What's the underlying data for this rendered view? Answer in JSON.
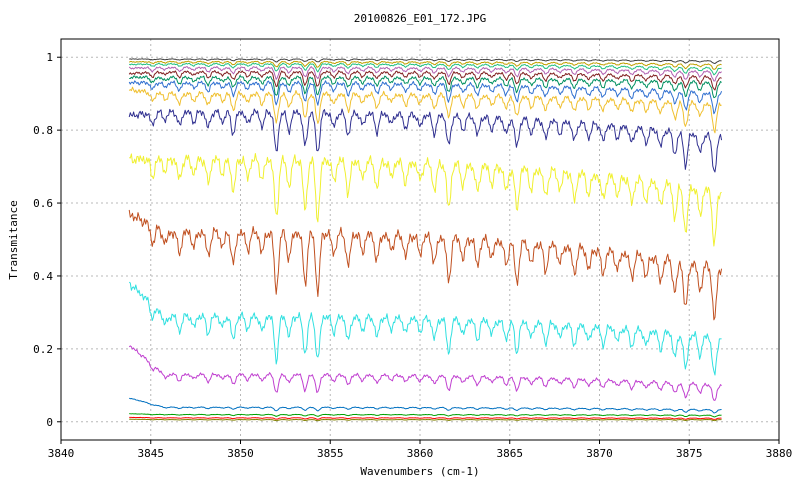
{
  "chart_data": {
    "type": "line",
    "title": "20100826_E01_172.JPG",
    "xlabel": "Wavenumbers (cm-1)",
    "ylabel": "Transmitance",
    "xlim": [
      3840,
      3880
    ],
    "ylim": [
      -0.05,
      1.05
    ],
    "xticks": [
      3840,
      3845,
      3850,
      3855,
      3860,
      3865,
      3870,
      3875,
      3880
    ],
    "yticks": [
      0,
      0.2,
      0.4,
      0.6,
      0.8,
      1
    ],
    "grid": true,
    "legend": "none",
    "x_range": [
      3843.8,
      3876.8
    ],
    "absorption_lines": [
      {
        "x": 3845.1,
        "strength": 0.3
      },
      {
        "x": 3845.8,
        "strength": 0.2
      },
      {
        "x": 3846.6,
        "strength": 0.35
      },
      {
        "x": 3847.4,
        "strength": 0.25
      },
      {
        "x": 3848.2,
        "strength": 0.4
      },
      {
        "x": 3849.0,
        "strength": 0.25
      },
      {
        "x": 3849.6,
        "strength": 0.55
      },
      {
        "x": 3850.4,
        "strength": 0.3
      },
      {
        "x": 3851.2,
        "strength": 0.35
      },
      {
        "x": 3852.0,
        "strength": 1.0
      },
      {
        "x": 3852.7,
        "strength": 0.45
      },
      {
        "x": 3853.6,
        "strength": 0.85
      },
      {
        "x": 3854.3,
        "strength": 1.0
      },
      {
        "x": 3855.2,
        "strength": 0.35
      },
      {
        "x": 3856.0,
        "strength": 0.55
      },
      {
        "x": 3856.8,
        "strength": 0.3
      },
      {
        "x": 3857.6,
        "strength": 0.45
      },
      {
        "x": 3858.4,
        "strength": 0.25
      },
      {
        "x": 3859.2,
        "strength": 0.35
      },
      {
        "x": 3860.0,
        "strength": 0.3
      },
      {
        "x": 3860.8,
        "strength": 0.45
      },
      {
        "x": 3861.6,
        "strength": 0.75
      },
      {
        "x": 3862.4,
        "strength": 0.35
      },
      {
        "x": 3863.2,
        "strength": 0.45
      },
      {
        "x": 3864.0,
        "strength": 0.3
      },
      {
        "x": 3864.8,
        "strength": 0.4
      },
      {
        "x": 3865.4,
        "strength": 0.7
      },
      {
        "x": 3866.2,
        "strength": 0.35
      },
      {
        "x": 3867.0,
        "strength": 0.45
      },
      {
        "x": 3867.8,
        "strength": 0.3
      },
      {
        "x": 3868.6,
        "strength": 0.45
      },
      {
        "x": 3869.4,
        "strength": 0.35
      },
      {
        "x": 3870.2,
        "strength": 0.4
      },
      {
        "x": 3871.0,
        "strength": 0.3
      },
      {
        "x": 3871.8,
        "strength": 0.4
      },
      {
        "x": 3872.6,
        "strength": 0.35
      },
      {
        "x": 3873.4,
        "strength": 0.4
      },
      {
        "x": 3874.2,
        "strength": 0.55
      },
      {
        "x": 3874.8,
        "strength": 0.8
      },
      {
        "x": 3875.6,
        "strength": 0.45
      },
      {
        "x": 3876.4,
        "strength": 0.9
      }
    ],
    "line_width": 0.16,
    "series": [
      {
        "color": "#ff0000",
        "start": 0.012,
        "end": 0.01,
        "base": 0.011,
        "depth": 0.004
      },
      {
        "color": "#808000",
        "start": 0.007,
        "end": 0.006,
        "base": 0.006,
        "depth": 0.003
      },
      {
        "color": "#00a000",
        "start": 0.022,
        "end": 0.018,
        "base": 0.02,
        "depth": 0.005
      },
      {
        "color": "#0070c0",
        "start": 0.065,
        "end": 0.033,
        "base": 0.04,
        "depth": 0.01
      },
      {
        "color": "#c040d0",
        "start": 0.21,
        "end": 0.1,
        "base": 0.13,
        "depth": 0.05
      },
      {
        "color": "#30e0e0",
        "start": 0.38,
        "end": 0.23,
        "base": 0.29,
        "depth": 0.12
      },
      {
        "color": "#c05020",
        "start": 0.57,
        "end": 0.42,
        "base": 0.52,
        "depth": 0.16
      },
      {
        "color": "#f0f030",
        "start": 0.72,
        "end": 0.63,
        "base": 0.72,
        "depth": 0.16
      },
      {
        "color": "#303090",
        "start": 0.84,
        "end": 0.78,
        "base": 0.85,
        "depth": 0.11
      },
      {
        "color": "#f0c030",
        "start": 0.91,
        "end": 0.87,
        "base": 0.9,
        "depth": 0.08
      },
      {
        "color": "#3070d0",
        "start": 0.93,
        "end": 0.9,
        "base": 0.93,
        "depth": 0.06
      },
      {
        "color": "#009060",
        "start": 0.945,
        "end": 0.93,
        "base": 0.945,
        "depth": 0.05
      },
      {
        "color": "#802020",
        "start": 0.955,
        "end": 0.945,
        "base": 0.96,
        "depth": 0.04
      },
      {
        "color": "#b060b0",
        "start": 0.97,
        "end": 0.96,
        "base": 0.972,
        "depth": 0.03
      },
      {
        "color": "#20c080",
        "start": 0.98,
        "end": 0.97,
        "base": 0.982,
        "depth": 0.02
      },
      {
        "color": "#c0a000",
        "start": 0.987,
        "end": 0.98,
        "base": 0.988,
        "depth": 0.015
      },
      {
        "color": "#404040",
        "start": 0.995,
        "end": 0.99,
        "base": 0.995,
        "depth": 0.008
      }
    ]
  }
}
